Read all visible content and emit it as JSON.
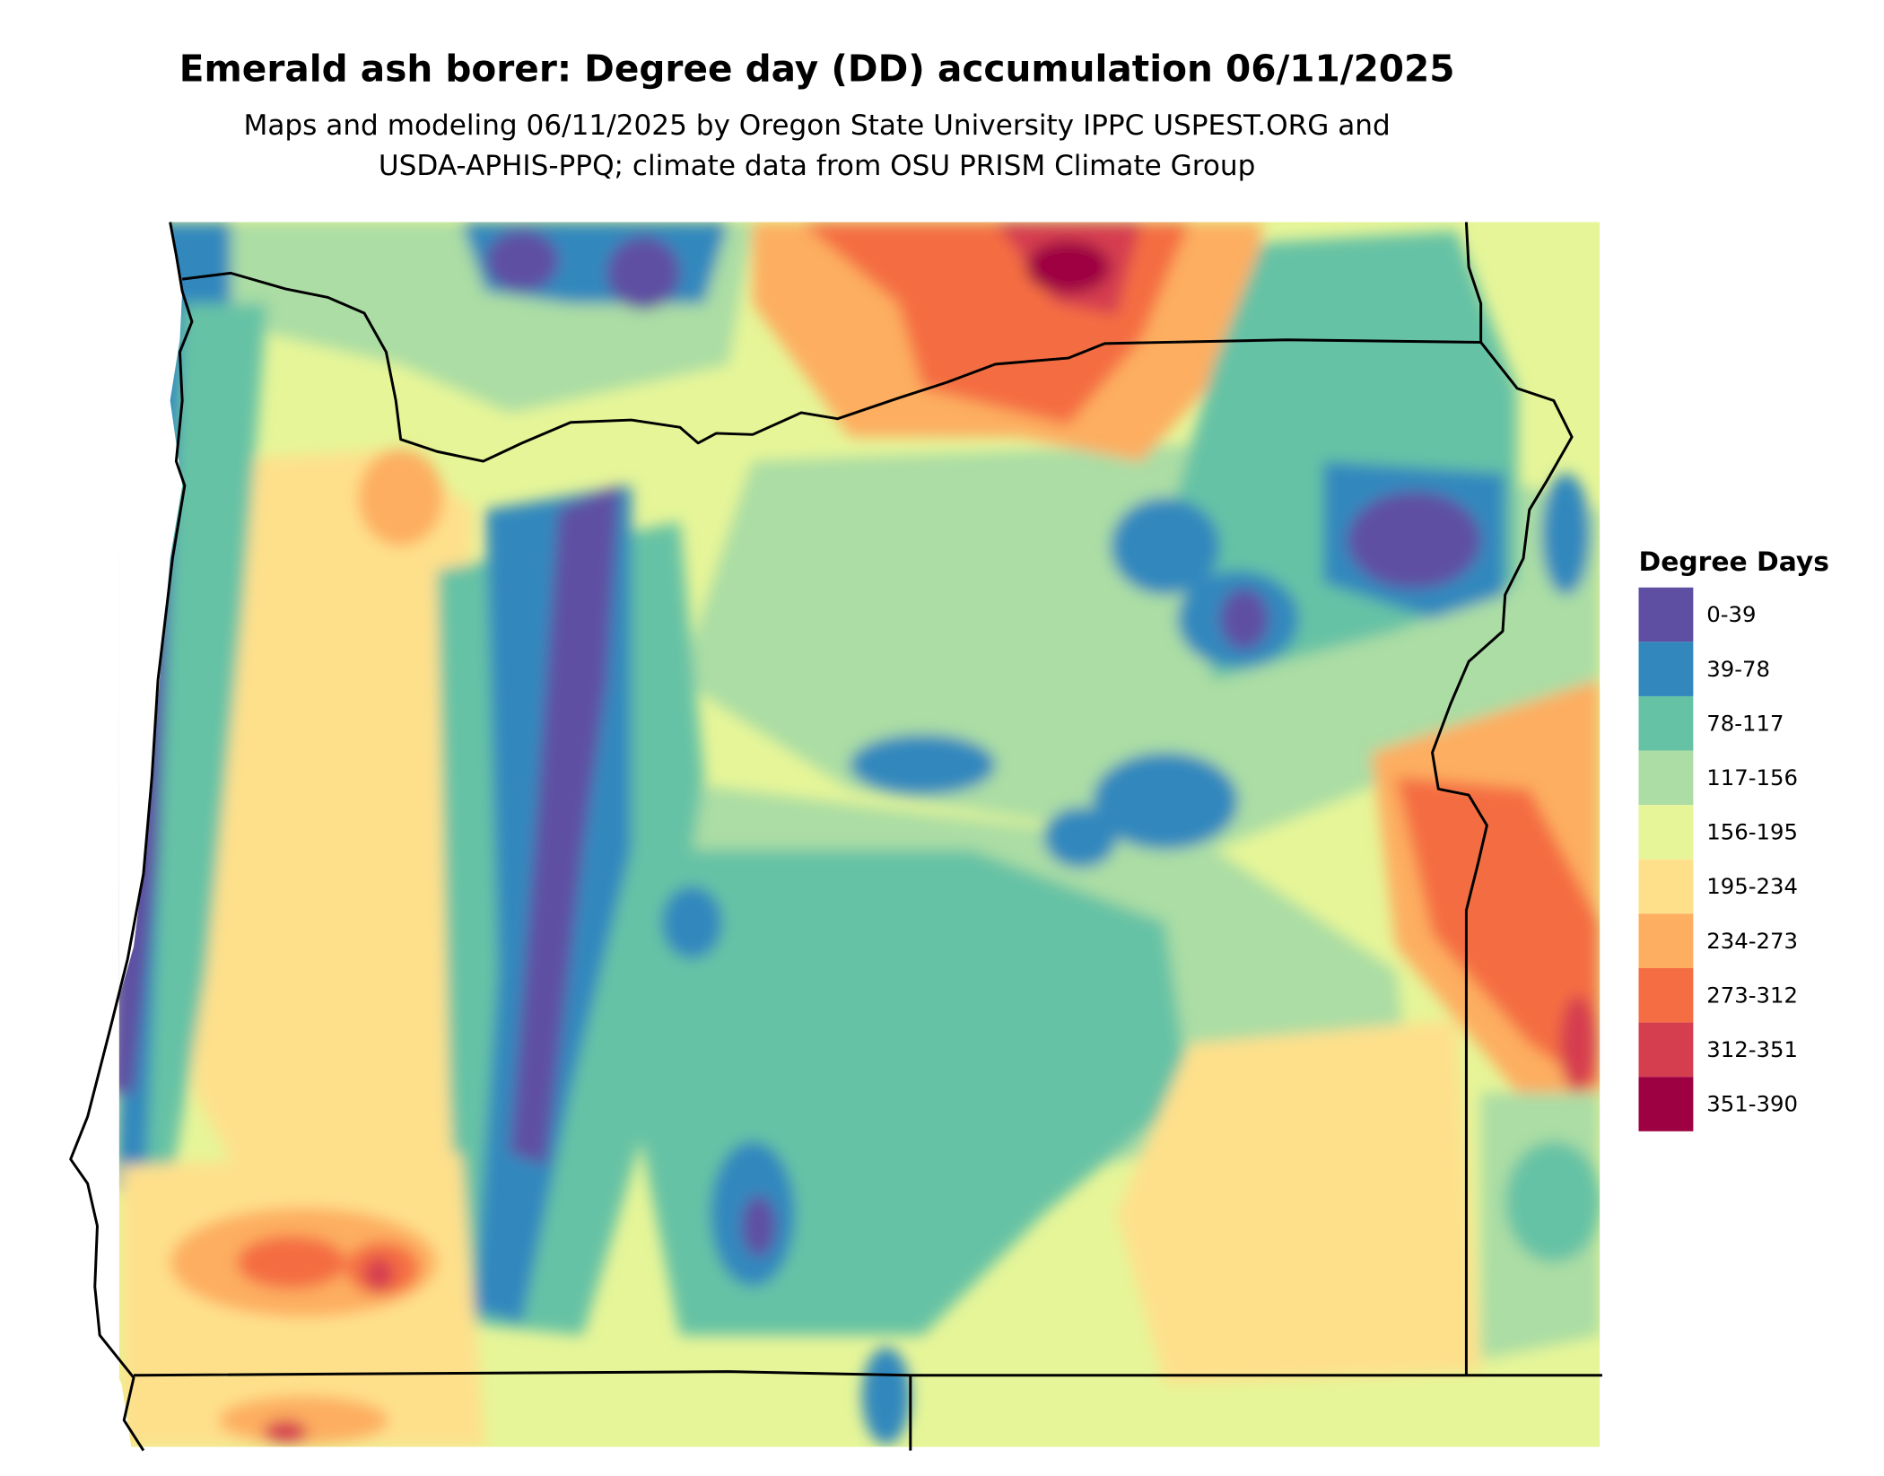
{
  "title": "Emerald ash borer: Degree day (DD) accumulation 06/11/2025",
  "subtitle": [
    "Maps and modeling 06/11/2025 by Oregon State University IPPC USPEST.ORG and",
    "USDA-APHIS-PPQ; climate data from OSU PRISM Climate Group"
  ],
  "legend": {
    "title": "Degree Days",
    "items": [
      {
        "label": "0-39",
        "color": "#5e4fa2"
      },
      {
        "label": "39-78",
        "color": "#3288bd"
      },
      {
        "label": "78-117",
        "color": "#66c2a5"
      },
      {
        "label": "117-156",
        "color": "#abdda4"
      },
      {
        "label": "156-195",
        "color": "#e6f598"
      },
      {
        "label": "195-234",
        "color": "#fee08b"
      },
      {
        "label": "234-273",
        "color": "#fdae61"
      },
      {
        "label": "273-312",
        "color": "#f46d43"
      },
      {
        "label": "312-351",
        "color": "#d53e4f"
      },
      {
        "label": "351-390",
        "color": "#9e0142"
      }
    ]
  }
}
